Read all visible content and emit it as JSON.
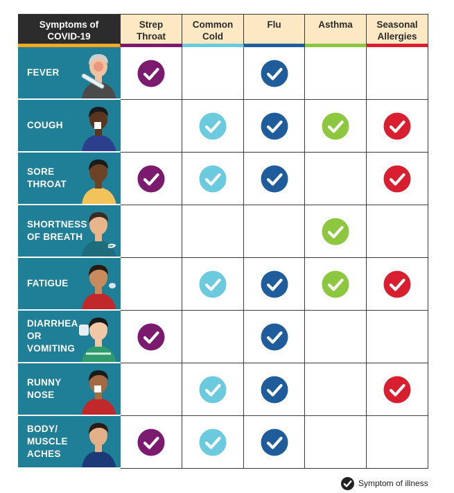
{
  "table": {
    "corner_label": "Symptoms of\nCOVID-19",
    "illnesses": [
      {
        "name": "Strep\nThroat",
        "color": "#7b1a6e"
      },
      {
        "name": "Common\nCold",
        "color": "#6ccadf"
      },
      {
        "name": "Flu",
        "color": "#1f5c9b"
      },
      {
        "name": "Asthma",
        "color": "#8dc63f"
      },
      {
        "name": "Seasonal\nAllergies",
        "color": "#d71f2f"
      }
    ],
    "corner_bar_color": "#f7a823",
    "symptoms": [
      {
        "label": "FEVER",
        "icon": "person-with-thermometer-icon",
        "checks": [
          true,
          false,
          true,
          false,
          false
        ]
      },
      {
        "label": "COUGH",
        "icon": "person-coughing-icon",
        "checks": [
          false,
          true,
          true,
          true,
          true
        ]
      },
      {
        "label": "SORE\nTHROAT",
        "icon": "person-holding-throat-icon",
        "checks": [
          true,
          true,
          true,
          false,
          true
        ]
      },
      {
        "label": "SHORTNESS\nOF BREATH",
        "icon": "person-short-of-breath-icon",
        "checks": [
          false,
          false,
          false,
          true,
          false
        ]
      },
      {
        "label": "FATIGUE",
        "icon": "tired-person-icon",
        "checks": [
          false,
          true,
          true,
          true,
          true
        ]
      },
      {
        "label": "DIARRHEA\nOR\nVOMITING",
        "icon": "person-with-toilet-icon",
        "checks": [
          true,
          false,
          true,
          false,
          false
        ]
      },
      {
        "label": "RUNNY\nNOSE",
        "icon": "person-with-tissue-icon",
        "checks": [
          false,
          true,
          true,
          false,
          true
        ]
      },
      {
        "label": "BODY/\nMUSCLE\nACHES",
        "icon": "person-with-body-aches-icon",
        "checks": [
          true,
          true,
          true,
          false,
          false
        ]
      }
    ]
  },
  "legend": {
    "label": "Symptom of illness",
    "icon": "check-circle-icon",
    "color": "#222222"
  }
}
